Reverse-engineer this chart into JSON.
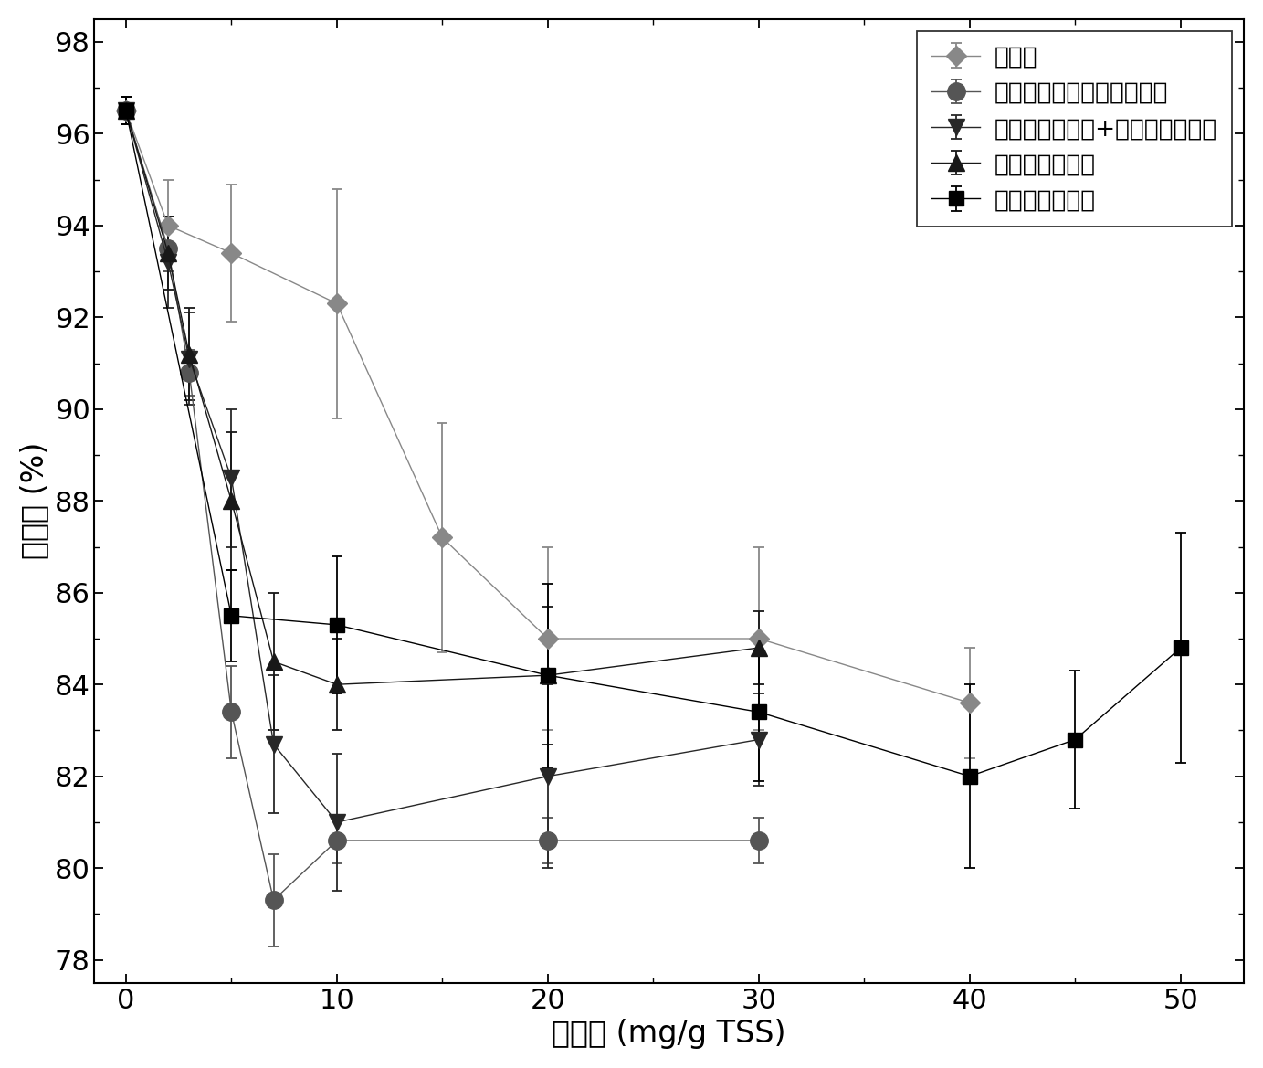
{
  "xlabel": "投加量 (mg/g TSS)",
  "ylabel": "含水率 (%)",
  "xlim": [
    -1.5,
    53
  ],
  "ylim": [
    77.5,
    98.5
  ],
  "yticks": [
    78,
    80,
    82,
    84,
    86,
    88,
    90,
    92,
    94,
    96,
    98
  ],
  "xticks": [
    0,
    10,
    20,
    30,
    40,
    50
  ],
  "series": [
    {
      "label": "氯化铁",
      "color": "#888888",
      "marker": "D",
      "markersize": 11,
      "linestyle": "-",
      "linewidth": 1.0,
      "x": [
        0,
        2,
        5,
        10,
        15,
        20,
        30,
        40
      ],
      "y": [
        96.5,
        94.0,
        93.4,
        92.3,
        87.2,
        85.0,
        85.0,
        83.6
      ],
      "yerr": [
        0.3,
        1.0,
        1.5,
        2.5,
        2.5,
        2.0,
        2.0,
        1.2
      ]
    },
    {
      "label": "新型杂合天然高分子絮凝剂",
      "color": "#555555",
      "marker": "o",
      "markersize": 14,
      "linestyle": "-",
      "linewidth": 1.0,
      "x": [
        0,
        2,
        3,
        5,
        7,
        10,
        20,
        30
      ],
      "y": [
        96.5,
        93.5,
        90.8,
        83.4,
        79.3,
        80.6,
        80.6,
        80.6
      ],
      "yerr": [
        0.3,
        0.5,
        0.5,
        1.0,
        1.0,
        0.5,
        0.5,
        0.5
      ]
    },
    {
      "label": "阳离子醚化淀粉+阳离子化木质素",
      "color": "#282828",
      "marker": "v",
      "markersize": 13,
      "linestyle": "-",
      "linewidth": 1.0,
      "x": [
        0,
        2,
        3,
        5,
        7,
        10,
        20,
        30
      ],
      "y": [
        96.5,
        93.2,
        91.1,
        88.5,
        82.7,
        81.0,
        82.0,
        82.8
      ],
      "yerr": [
        0.3,
        1.0,
        1.0,
        1.5,
        1.5,
        1.5,
        2.0,
        1.0
      ]
    },
    {
      "label": "阳离子醚化淀粉",
      "color": "#181818",
      "marker": "^",
      "markersize": 13,
      "linestyle": "-",
      "linewidth": 1.0,
      "x": [
        0,
        2,
        3,
        5,
        7,
        10,
        20,
        30
      ],
      "y": [
        96.5,
        93.4,
        91.2,
        88.0,
        84.5,
        84.0,
        84.2,
        84.8
      ],
      "yerr": [
        0.3,
        0.8,
        1.0,
        1.5,
        1.5,
        1.0,
        1.5,
        0.8
      ]
    },
    {
      "label": "阳离子化木质素",
      "color": "#000000",
      "marker": "s",
      "markersize": 11,
      "linestyle": "-",
      "linewidth": 1.0,
      "x": [
        0,
        5,
        10,
        20,
        30,
        40,
        45,
        50
      ],
      "y": [
        96.5,
        85.5,
        85.3,
        84.2,
        83.4,
        82.0,
        82.8,
        84.8
      ],
      "yerr": [
        0.3,
        1.0,
        1.5,
        2.0,
        1.5,
        2.0,
        1.5,
        2.5
      ]
    }
  ],
  "tick_labelsize": 22,
  "label_fontsize": 24,
  "legend_fontsize": 19
}
